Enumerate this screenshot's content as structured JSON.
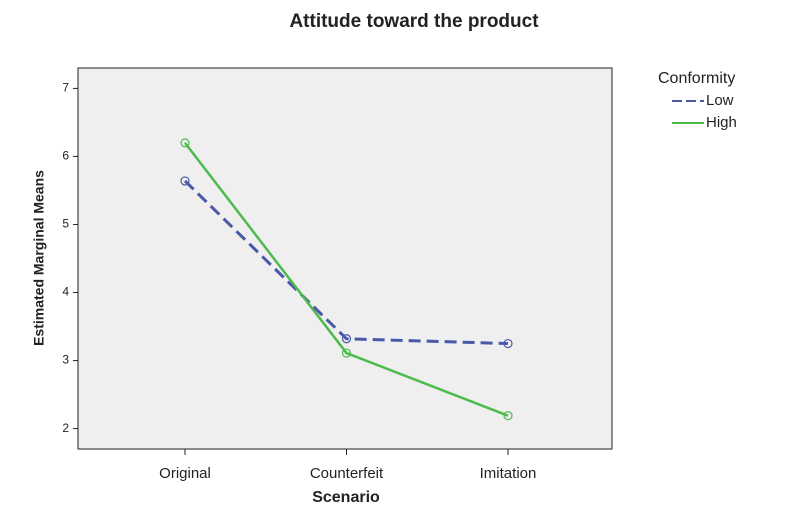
{
  "chart_data": {
    "type": "line",
    "title": "Attitude toward the product",
    "x_label": "Scenario",
    "y_label": "Estimated Marginal Means",
    "categories": [
      "Original",
      "Counterfeit",
      "Imitation"
    ],
    "legend_title": "Conformity",
    "series": [
      {
        "name": "Low",
        "color": "#4a58a8",
        "style": "dashed",
        "values": [
          5.64,
          3.32,
          3.25
        ]
      },
      {
        "name": "High",
        "color": "#4cbb4c",
        "style": "solid",
        "values": [
          6.2,
          3.11,
          2.19
        ]
      }
    ],
    "ylim": [
      1.7,
      7.3
    ],
    "yticks": [
      2,
      3,
      4,
      5,
      6,
      7
    ],
    "legend": "right",
    "background": "#efefef"
  }
}
